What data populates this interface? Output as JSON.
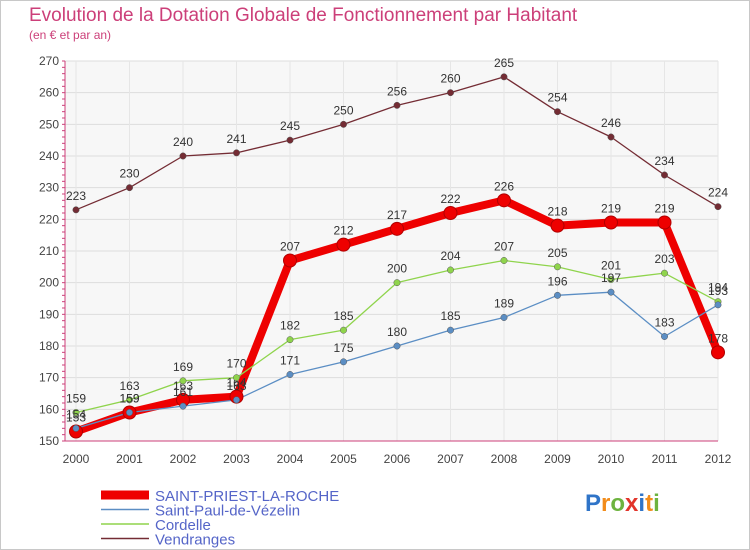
{
  "page": {
    "title": "Evolution de la Dotation Globale de Fonctionnement par Habitant",
    "subtitle": "(en € et par an)"
  },
  "logo": {
    "text": "Proxiti",
    "letters": [
      "P",
      "r",
      "o",
      "x",
      "i",
      "t",
      "i"
    ],
    "colors": [
      "#2f74c8",
      "#f28c1a",
      "#6db33f",
      "#e2342a",
      "#2f74c8",
      "#f28c1a",
      "#6db33f"
    ]
  },
  "chart_data": {
    "type": "line",
    "x": [
      2000,
      2001,
      2002,
      2003,
      2004,
      2005,
      2006,
      2007,
      2008,
      2009,
      2010,
      2011,
      2012
    ],
    "xlim": [
      2000,
      2012
    ],
    "ylim": [
      150,
      270
    ],
    "yticks": [
      150,
      160,
      170,
      180,
      190,
      200,
      210,
      220,
      230,
      240,
      250,
      260,
      270
    ],
    "grid": true,
    "legend_position": "bottom-left",
    "series": [
      {
        "name": "SAINT-PRIEST-LA-ROCHE",
        "color": "#ee0000",
        "emphasis": true,
        "values": [
          153,
          159,
          163,
          164,
          207,
          212,
          217,
          222,
          226,
          218,
          219,
          219,
          178
        ],
        "labels": [
          "153",
          "159",
          "163",
          "164",
          "207",
          "212",
          "217",
          "222",
          "226",
          "218",
          "219",
          "219",
          "178"
        ]
      },
      {
        "name": "Saint-Paul-de-Vézelin",
        "color": "#5b8ec4",
        "emphasis": false,
        "values": [
          154,
          159,
          161,
          163,
          171,
          175,
          180,
          185,
          189,
          196,
          197,
          183,
          193
        ],
        "labels": [
          "154",
          "159",
          "161",
          "163",
          "171",
          "175",
          "180",
          "185",
          "189",
          "196",
          "197",
          "183",
          "193"
        ]
      },
      {
        "name": "Cordelle",
        "color": "#8fd44c",
        "emphasis": false,
        "values": [
          159,
          163,
          169,
          170,
          182,
          185,
          200,
          204,
          207,
          205,
          201,
          203,
          194
        ],
        "labels": [
          "159",
          "163",
          "169",
          "170",
          "182",
          "185",
          "200",
          "204",
          "207",
          "205",
          "201",
          "203",
          "194"
        ]
      },
      {
        "name": "Vendranges",
        "color": "#742c34",
        "emphasis": false,
        "values": [
          223,
          230,
          240,
          241,
          245,
          250,
          256,
          260,
          265,
          254,
          246,
          234,
          224
        ],
        "labels": [
          "223",
          "230",
          "240",
          "241",
          "245",
          "250",
          "256",
          "260",
          "265",
          "254",
          "246",
          "234",
          "224"
        ]
      }
    ]
  }
}
